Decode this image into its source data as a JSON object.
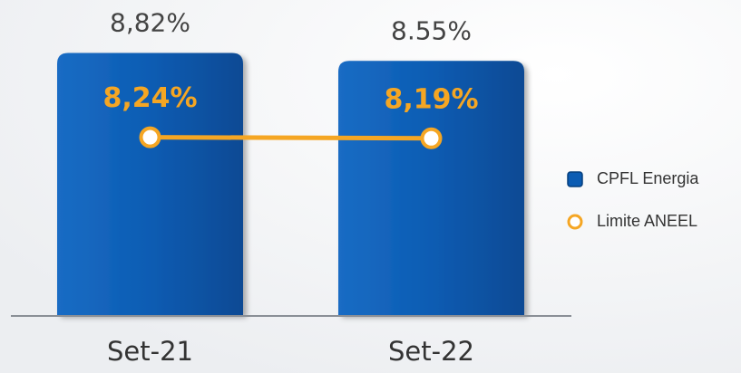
{
  "chart_data": {
    "type": "bar_line",
    "categories": [
      "Set-21",
      "Set-22"
    ],
    "ylim": [
      0,
      10.6
    ],
    "y2lim": [
      0,
      14.6
    ],
    "series": [
      {
        "name": "CPFL Energia",
        "type": "bar",
        "color": "#0b5cb3",
        "values": [
          8.82,
          8.55
        ],
        "value_labels": [
          "8,82%",
          "8.55%"
        ]
      },
      {
        "name": "Limite ANEEL",
        "type": "line",
        "axis": "y2",
        "color": "#f5a623",
        "values": [
          8.24,
          8.19
        ],
        "value_labels": [
          "8,24%",
          "8,19%"
        ]
      }
    ],
    "legend": "right"
  }
}
